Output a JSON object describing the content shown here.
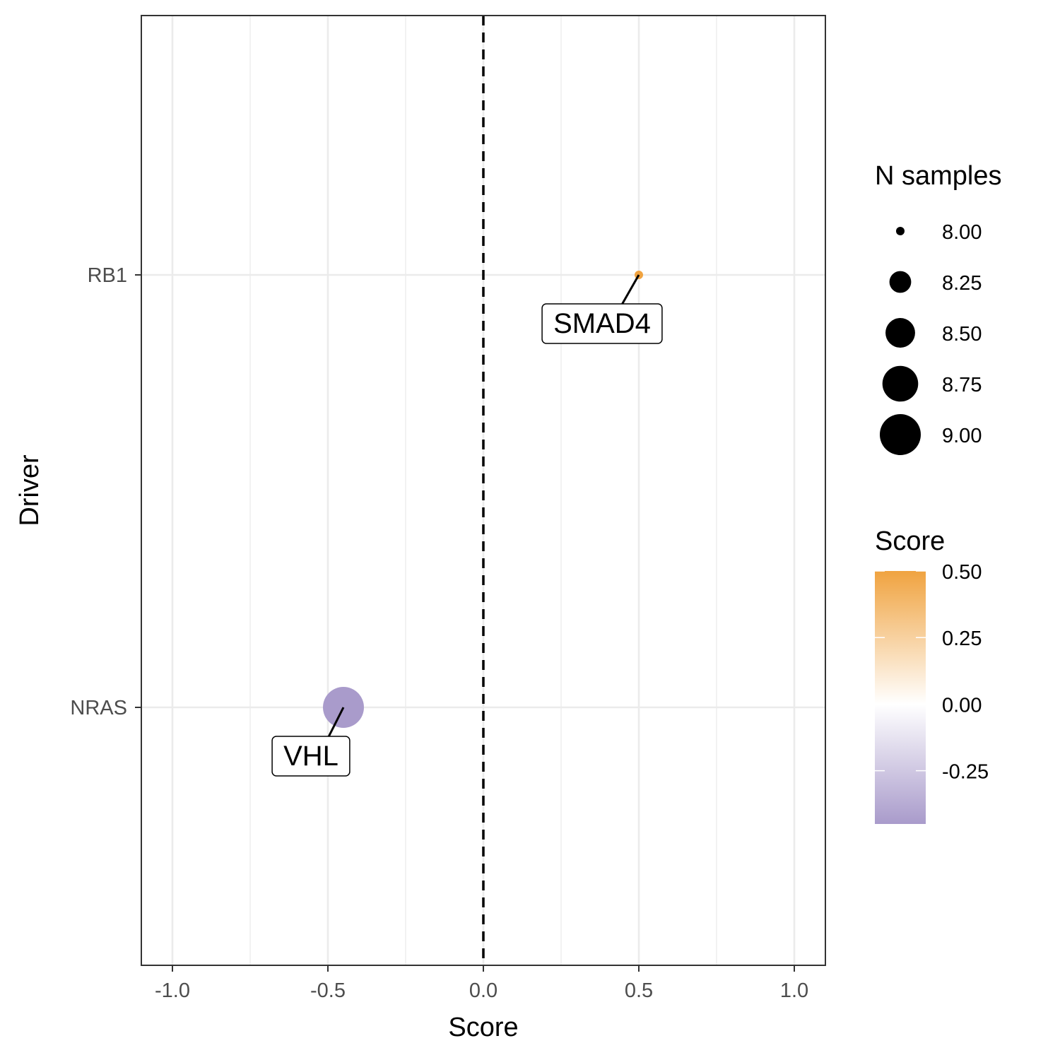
{
  "chart_data": {
    "type": "scatter",
    "xlabel": "Score",
    "ylabel": "Driver",
    "xlim": [
      -1.1,
      1.1
    ],
    "xticks": [
      "-1.0",
      "-0.5",
      "0.0",
      "0.5",
      "1.0"
    ],
    "xtick_values": [
      -1.0,
      -0.5,
      0.0,
      0.5,
      1.0
    ],
    "categories": [
      "NRAS",
      "RB1"
    ],
    "reference_line": {
      "x": 0.0,
      "style": "dashed"
    },
    "grid": true,
    "points": [
      {
        "driver": "RB1",
        "score": 0.5,
        "n_samples": 8.0,
        "label": "SMAD4",
        "color": "#F0A340"
      },
      {
        "driver": "NRAS",
        "score": -0.45,
        "n_samples": 9.0,
        "label": "VHL",
        "color": "#A99BCB"
      }
    ],
    "legend": {
      "placement": "right",
      "size": {
        "title": "N samples",
        "items": [
          {
            "label": "8.00",
            "value": 8.0
          },
          {
            "label": "8.25",
            "value": 8.25
          },
          {
            "label": "8.50",
            "value": 8.5
          },
          {
            "label": "8.75",
            "value": 8.75
          },
          {
            "label": "9.00",
            "value": 9.0
          }
        ]
      },
      "color": {
        "title": "Score",
        "range": [
          -0.45,
          0.5
        ],
        "ticks": [
          {
            "label": "0.50",
            "value": 0.5
          },
          {
            "label": "0.25",
            "value": 0.25
          },
          {
            "label": "0.00",
            "value": 0.0
          },
          {
            "label": "-0.25",
            "value": -0.25
          }
        ],
        "low_color": "#A99BCB",
        "mid_color": "#FFFFFF",
        "high_color": "#F0A340"
      }
    }
  }
}
